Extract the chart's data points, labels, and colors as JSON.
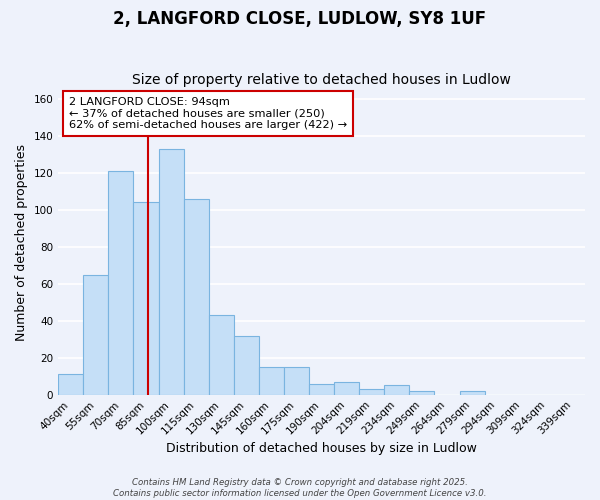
{
  "title": "2, LANGFORD CLOSE, LUDLOW, SY8 1UF",
  "subtitle": "Size of property relative to detached houses in Ludlow",
  "xlabel": "Distribution of detached houses by size in Ludlow",
  "ylabel": "Number of detached properties",
  "bar_values": [
    11,
    65,
    121,
    104,
    133,
    106,
    43,
    32,
    15,
    15,
    6,
    7,
    3,
    5,
    2,
    0,
    2,
    0,
    0,
    0,
    0
  ],
  "bar_labels": [
    "40sqm",
    "55sqm",
    "70sqm",
    "85sqm",
    "100sqm",
    "115sqm",
    "130sqm",
    "145sqm",
    "160sqm",
    "175sqm",
    "190sqm",
    "204sqm",
    "219sqm",
    "234sqm",
    "249sqm",
    "264sqm",
    "279sqm",
    "294sqm",
    "309sqm",
    "324sqm",
    "339sqm"
  ],
  "bar_color": "#c5dff7",
  "bar_edge_color": "#7ab4e0",
  "vline_color": "#cc0000",
  "annotation_line1": "2 LANGFORD CLOSE: 94sqm",
  "annotation_line2": "← 37% of detached houses are smaller (250)",
  "annotation_line3": "62% of semi-detached houses are larger (422) →",
  "annotation_box_color": "#ffffff",
  "annotation_box_edge": "#cc0000",
  "ylim": [
    0,
    165
  ],
  "yticks": [
    0,
    20,
    40,
    60,
    80,
    100,
    120,
    140,
    160
  ],
  "background_color": "#eef2fb",
  "grid_color": "#ffffff",
  "footer_line1": "Contains HM Land Registry data © Crown copyright and database right 2025.",
  "footer_line2": "Contains public sector information licensed under the Open Government Licence v3.0.",
  "title_fontsize": 12,
  "subtitle_fontsize": 10,
  "axis_label_fontsize": 9,
  "tick_fontsize": 7.5,
  "annotation_fontsize": 8.2
}
